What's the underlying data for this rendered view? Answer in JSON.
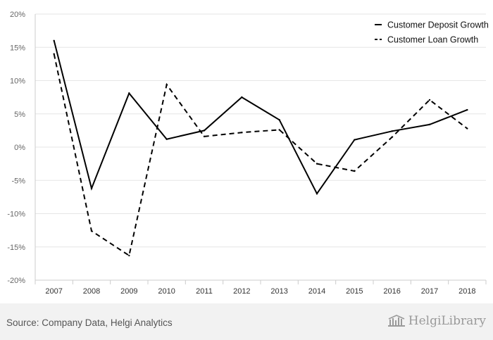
{
  "chart_data": {
    "type": "line",
    "title": "",
    "xlabel": "",
    "ylabel": "",
    "x": [
      "2007",
      "2008",
      "2009",
      "2010",
      "2011",
      "2012",
      "2013",
      "2014",
      "2015",
      "2016",
      "2017",
      "2018"
    ],
    "yticks": [
      "20%",
      "15%",
      "10%",
      "5%",
      "0%",
      "-5%",
      "-10%",
      "-15%",
      "-20%"
    ],
    "ylim": [
      -20,
      20
    ],
    "grid": true,
    "legend_position": "top-right",
    "series": [
      {
        "name": "Customer Deposit Growth",
        "style": "solid",
        "color": "#000000",
        "values": [
          16.0,
          -6.2,
          8.1,
          1.2,
          2.5,
          7.5,
          4.1,
          -7.0,
          1.1,
          2.4,
          3.4,
          5.6
        ]
      },
      {
        "name": "Customer Loan Growth",
        "style": "dashed",
        "color": "#000000",
        "values": [
          14.0,
          -12.6,
          -16.3,
          9.4,
          1.6,
          2.2,
          2.6,
          -2.5,
          -3.6,
          1.5,
          7.1,
          2.8
        ]
      }
    ]
  },
  "footer": {
    "source": "Source: Company Data, Helgi Analytics",
    "brand": "HelgiLibrary"
  },
  "colors": {
    "grid": "#e6e6e6",
    "axis": "#cccccc",
    "footer_bg": "#f2f2f2",
    "brand": "#9a9a9a"
  }
}
